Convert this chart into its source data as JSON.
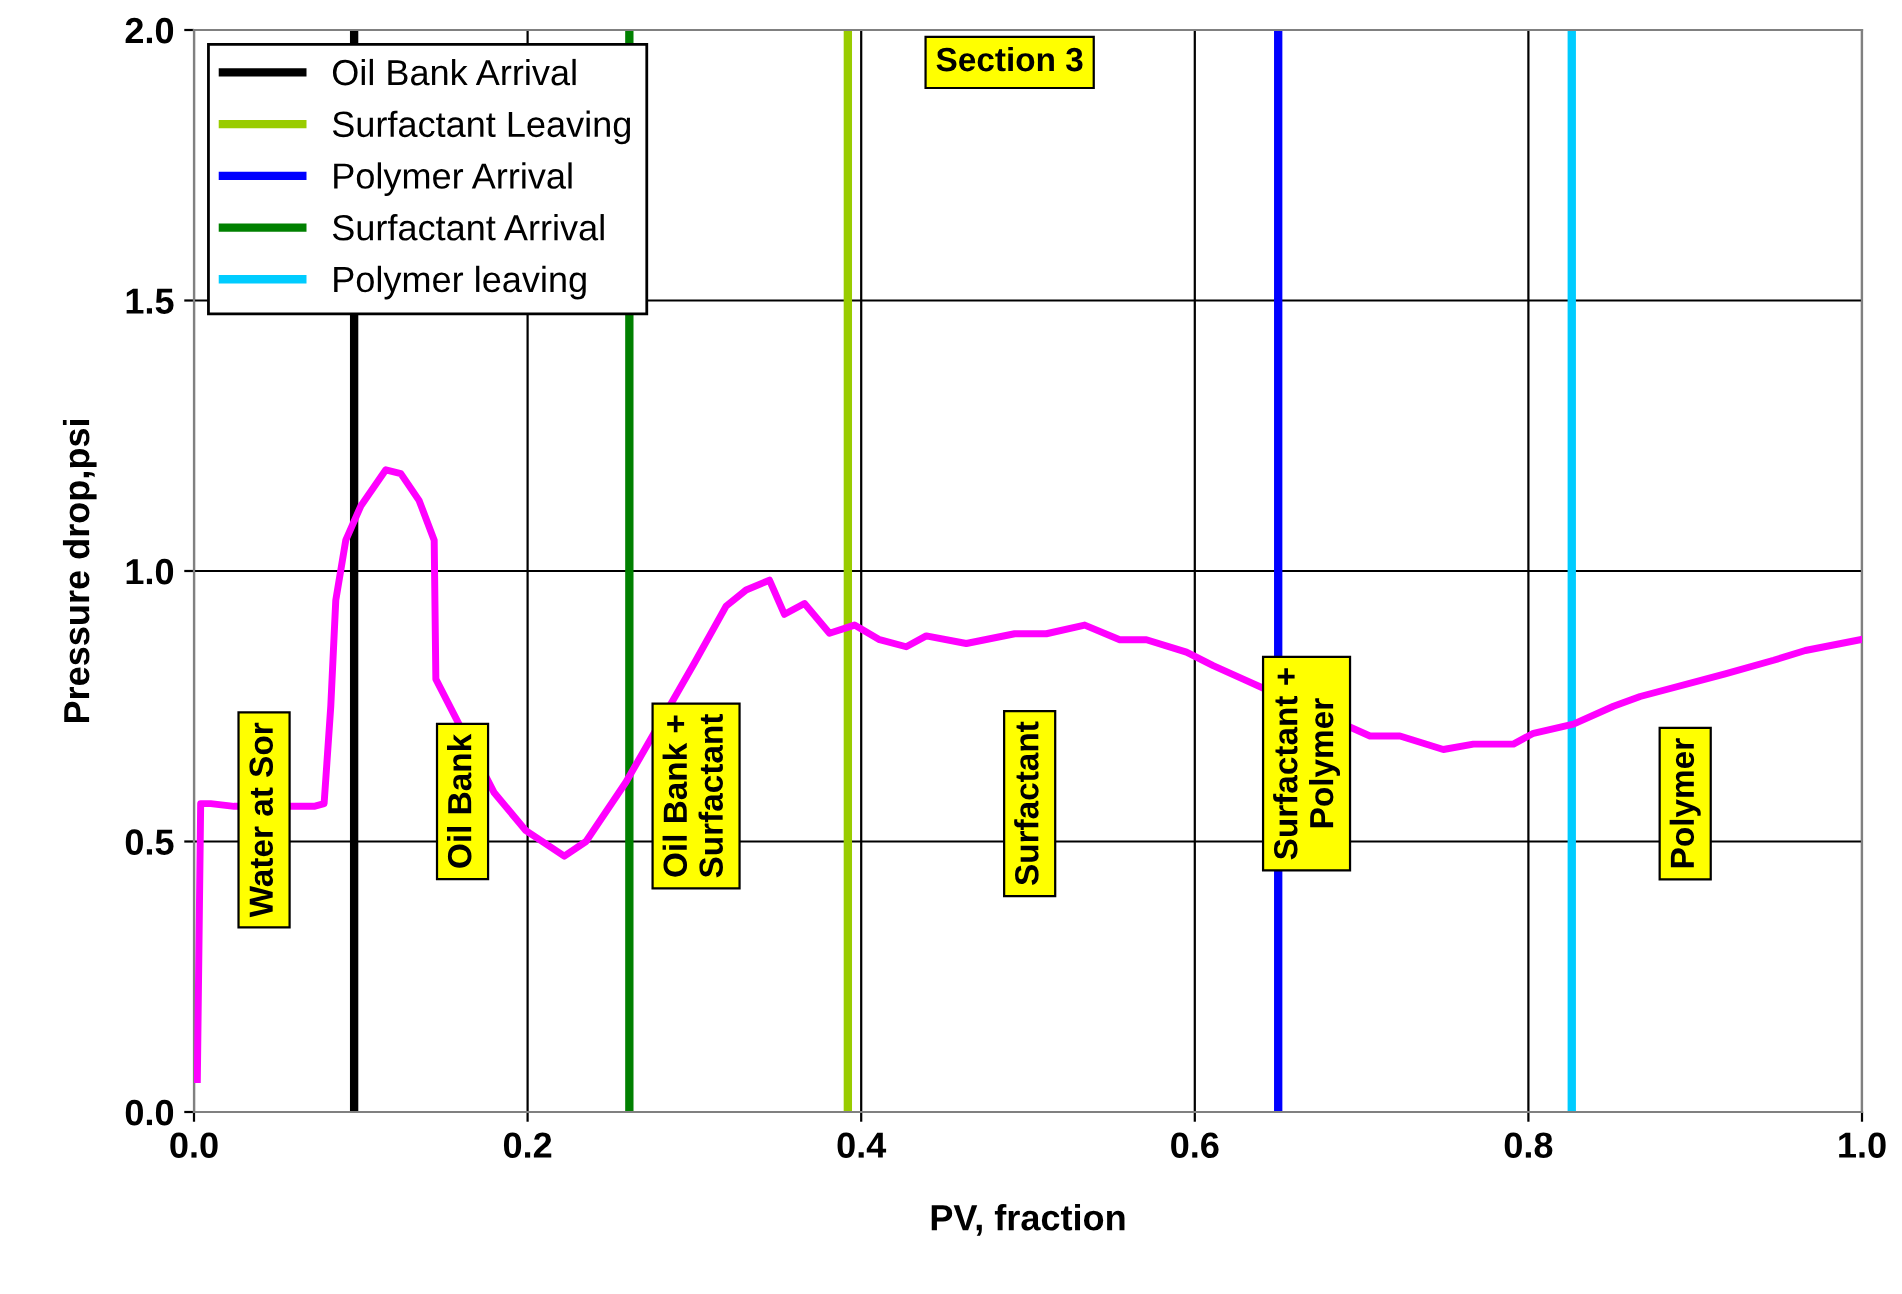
{
  "chart_data": {
    "type": "line",
    "xlabel": "PV, fraction",
    "ylabel": "Pressure drop,psi",
    "xlim": [
      0,
      1
    ],
    "ylim": [
      0,
      2
    ],
    "xticks": [
      {
        "value": 0,
        "label": "0.0"
      },
      {
        "value": 0.2,
        "label": "0.2"
      },
      {
        "value": 0.4,
        "label": "0.4"
      },
      {
        "value": 0.6,
        "label": "0.6"
      },
      {
        "value": 0.8,
        "label": "0.8"
      },
      {
        "value": 1,
        "label": "1.0"
      }
    ],
    "yticks": [
      {
        "value": 0,
        "label": "0.0"
      },
      {
        "value": 0.5,
        "label": "0.5"
      },
      {
        "value": 1,
        "label": "1.0"
      },
      {
        "value": 1.5,
        "label": "1.5"
      },
      {
        "value": 2,
        "label": "2.0"
      }
    ],
    "grid": true,
    "legend": "top left",
    "marker": "none",
    "line_style": "solid",
    "series": [
      {
        "color": "#ff00ff",
        "x": [
          0.002,
          0.004,
          0.01,
          0.024,
          0.072,
          0.078,
          0.082,
          0.085,
          0.091,
          0.1,
          0.115,
          0.124,
          0.135,
          0.144,
          0.145,
          0.18,
          0.199,
          0.222,
          0.235,
          0.259,
          0.3,
          0.319,
          0.331,
          0.345,
          0.354,
          0.366,
          0.381,
          0.396,
          0.411,
          0.427,
          0.439,
          0.463,
          0.492,
          0.511,
          0.534,
          0.555,
          0.571,
          0.595,
          0.611,
          0.629,
          0.705,
          0.723,
          0.749,
          0.767,
          0.791,
          0.803,
          0.827,
          0.851,
          0.867,
          0.918,
          0.947,
          0.966,
          0.999
        ],
        "values": [
          0.06,
          0.57,
          0.57,
          0.565,
          0.565,
          0.57,
          0.75,
          0.946,
          1.057,
          1.12,
          1.187,
          1.18,
          1.13,
          1.057,
          0.8,
          0.59,
          0.52,
          0.473,
          0.5,
          0.61,
          0.83,
          0.935,
          0.965,
          0.983,
          0.92,
          0.94,
          0.885,
          0.9,
          0.873,
          0.86,
          0.88,
          0.866,
          0.884,
          0.884,
          0.9,
          0.873,
          0.873,
          0.85,
          0.825,
          0.8,
          0.695,
          0.695,
          0.67,
          0.68,
          0.68,
          0.7,
          0.717,
          0.75,
          0.768,
          0.81,
          0.835,
          0.853,
          0.873
        ]
      },
      {
        "name": "Oil Bank Arrival",
        "color": "#000000",
        "x": [
          0.096,
          0.096
        ],
        "values": [
          0,
          2
        ]
      },
      {
        "name": "Surfactant Leaving",
        "color": "#99cc00",
        "x": [
          0.392,
          0.392
        ],
        "values": [
          0,
          2
        ]
      },
      {
        "name": "Polymer Arrival",
        "color": "#0000ff",
        "x": [
          0.65,
          0.65
        ],
        "values": [
          0,
          2
        ]
      },
      {
        "name": "Surfactant Arrival",
        "color": "#008000",
        "x": [
          0.261,
          0.261
        ],
        "values": [
          0,
          2
        ]
      },
      {
        "name": "Polymer leaving",
        "color": "#00ccff",
        "x": [
          0.826,
          0.826
        ],
        "values": [
          0,
          2
        ]
      }
    ],
    "annotations": [
      "Water at Sor",
      "Oil Bank",
      "Oil Bank +\nSurfactant",
      "Surfactant",
      "Surfactant +\nPolymer",
      "Polymer",
      "Section 3"
    ]
  }
}
